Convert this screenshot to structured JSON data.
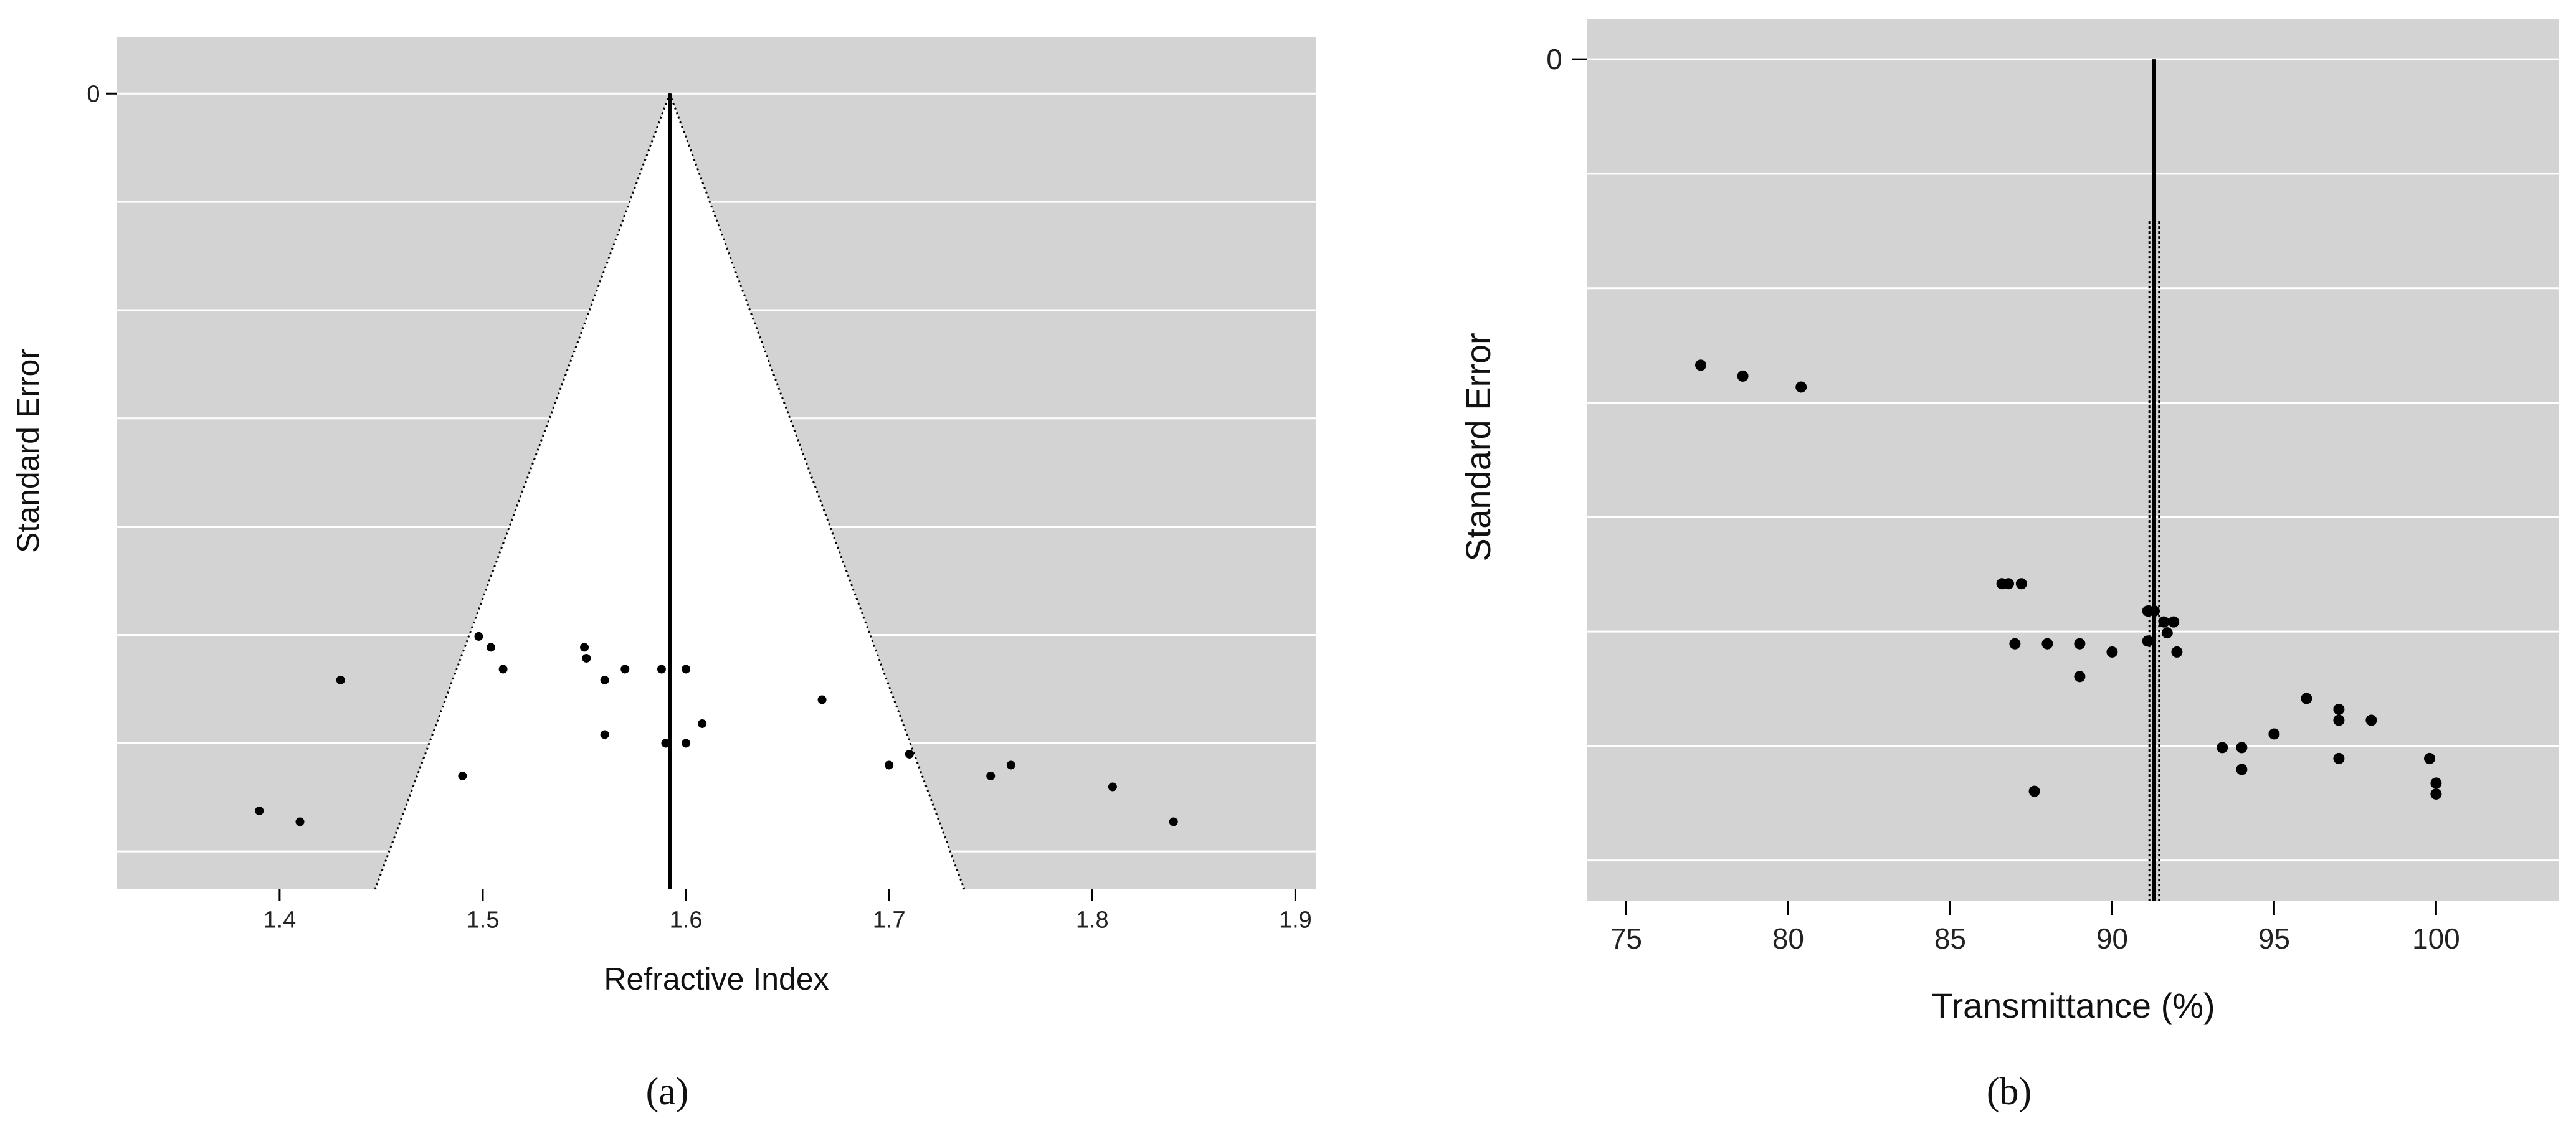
{
  "chart_data": [
    {
      "type": "scatter",
      "panel_label": "(a)",
      "xlabel": "Refractive Index",
      "ylabel": "Standard Error",
      "xlim": [
        1.32,
        1.91
      ],
      "ylim": [
        0,
        0.0365
      ],
      "y_inverted": true,
      "x_ticks": [
        "1.4",
        "1.5",
        "1.6",
        "1.7",
        "1.8",
        "1.9"
      ],
      "y_tick_labels": [
        "0"
      ],
      "grid": "horizontal",
      "gridline_count": 7,
      "background": "#d3d3d3",
      "funnel": {
        "center": 1.592,
        "lower_x_at_bottom": 1.447,
        "upper_x_at_bottom": 1.737,
        "fill": "#ffffff"
      },
      "pooled_estimate": 1.592,
      "points": [
        {
          "x": 1.39,
          "y": 0.0329
        },
        {
          "x": 1.41,
          "y": 0.0334
        },
        {
          "x": 1.43,
          "y": 0.0269
        },
        {
          "x": 1.49,
          "y": 0.0313
        },
        {
          "x": 1.498,
          "y": 0.0249
        },
        {
          "x": 1.504,
          "y": 0.0254
        },
        {
          "x": 1.51,
          "y": 0.0264
        },
        {
          "x": 1.55,
          "y": 0.0254
        },
        {
          "x": 1.551,
          "y": 0.0259
        },
        {
          "x": 1.56,
          "y": 0.0269
        },
        {
          "x": 1.56,
          "y": 0.0294
        },
        {
          "x": 1.57,
          "y": 0.0264
        },
        {
          "x": 1.588,
          "y": 0.0264
        },
        {
          "x": 1.59,
          "y": 0.0298
        },
        {
          "x": 1.6,
          "y": 0.0298
        },
        {
          "x": 1.6,
          "y": 0.0264
        },
        {
          "x": 1.608,
          "y": 0.0289
        },
        {
          "x": 1.667,
          "y": 0.0278
        },
        {
          "x": 1.7,
          "y": 0.0308
        },
        {
          "x": 1.71,
          "y": 0.0303
        },
        {
          "x": 1.75,
          "y": 0.0313
        },
        {
          "x": 1.76,
          "y": 0.0308
        },
        {
          "x": 1.81,
          "y": 0.0318
        },
        {
          "x": 1.84,
          "y": 0.0334
        }
      ],
      "colors": {
        "points": "#000000",
        "grid": "#ffffff",
        "line": "#000000"
      }
    },
    {
      "type": "scatter",
      "panel_label": "(b)",
      "xlabel": "Transmittance (%)",
      "ylabel": "Standard Error",
      "xlim": [
        73.8,
        103.8
      ],
      "ylim": [
        0,
        15.4
      ],
      "y_inverted": true,
      "x_ticks": [
        "75",
        "80",
        "85",
        "90",
        "95",
        "100"
      ],
      "y_tick_labels": [
        "0"
      ],
      "grid": "horizontal",
      "gridline_count": 7,
      "background": "#d3d3d3",
      "pooled_estimate": 91.3,
      "pooled_band": [
        91.15,
        91.45
      ],
      "points": [
        {
          "x": 77.3,
          "y": 5.6
        },
        {
          "x": 78.6,
          "y": 5.8
        },
        {
          "x": 80.4,
          "y": 6.0
        },
        {
          "x": 86.6,
          "y": 9.6
        },
        {
          "x": 86.8,
          "y": 9.6
        },
        {
          "x": 87.2,
          "y": 9.6
        },
        {
          "x": 87.0,
          "y": 10.7
        },
        {
          "x": 88.0,
          "y": 10.7
        },
        {
          "x": 89.0,
          "y": 10.7
        },
        {
          "x": 89.0,
          "y": 11.3
        },
        {
          "x": 90.0,
          "y": 10.85
        },
        {
          "x": 87.6,
          "y": 13.4
        },
        {
          "x": 91.1,
          "y": 10.1
        },
        {
          "x": 91.3,
          "y": 10.1
        },
        {
          "x": 91.1,
          "y": 10.65
        },
        {
          "x": 91.6,
          "y": 10.3
        },
        {
          "x": 91.7,
          "y": 10.5
        },
        {
          "x": 91.9,
          "y": 10.3
        },
        {
          "x": 92.0,
          "y": 10.85
        },
        {
          "x": 96.0,
          "y": 11.7
        },
        {
          "x": 97.0,
          "y": 11.9
        },
        {
          "x": 97.0,
          "y": 12.1
        },
        {
          "x": 98.0,
          "y": 12.1
        },
        {
          "x": 95.0,
          "y": 12.35
        },
        {
          "x": 93.4,
          "y": 12.6
        },
        {
          "x": 94.0,
          "y": 12.6
        },
        {
          "x": 94.0,
          "y": 13.0
        },
        {
          "x": 97.0,
          "y": 12.8
        },
        {
          "x": 99.8,
          "y": 12.8
        },
        {
          "x": 100.0,
          "y": 13.25
        },
        {
          "x": 100.0,
          "y": 13.45
        }
      ],
      "colors": {
        "points": "#000000",
        "grid": "#ffffff",
        "line": "#000000"
      }
    }
  ]
}
